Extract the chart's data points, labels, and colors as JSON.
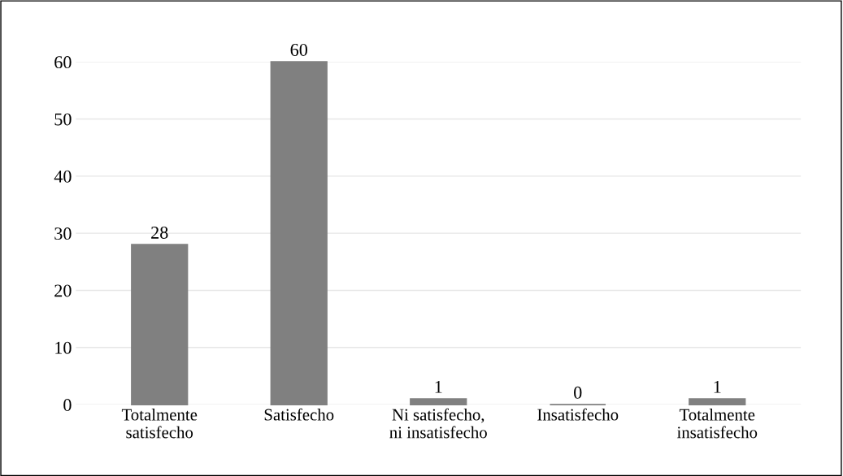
{
  "chart_data": {
    "type": "bar",
    "categories": [
      "Totalmente\nsatisfecho",
      "Satisfecho",
      "Ni satisfecho,\nni insatisfecho",
      "Insatisfecho",
      "Totalmente\ninsatisfecho"
    ],
    "values": [
      28,
      60,
      1,
      0,
      1
    ],
    "color": "#808080",
    "ylim": [
      0,
      60
    ],
    "yticks": [
      0,
      10,
      20,
      30,
      40,
      50,
      60
    ],
    "grid": "y",
    "data_labels": true
  }
}
